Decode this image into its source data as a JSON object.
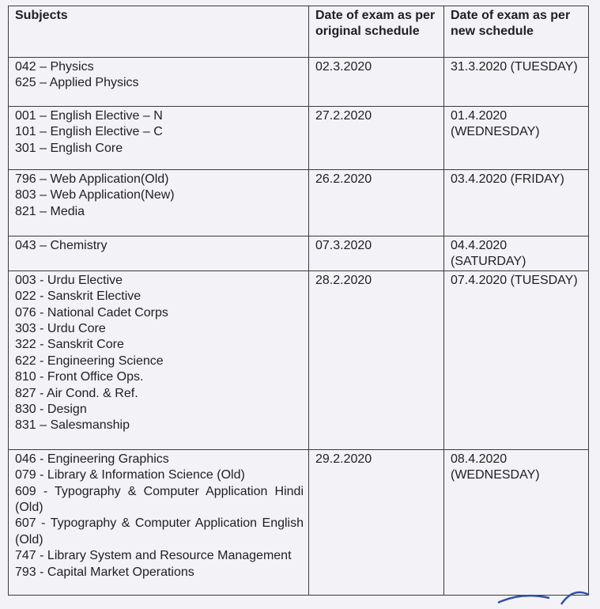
{
  "table": {
    "headers": [
      "Subjects",
      "Date of exam as per original schedule",
      "Date of exam as per new schedule"
    ],
    "rows": [
      {
        "subjects": [
          "042 – Physics",
          "625 – Applied Physics"
        ],
        "original": "02.3.2020",
        "new": "31.3.2020 (TUESDAY)"
      },
      {
        "subjects": [
          "001 – English Elective – N",
          "101 – English Elective – C",
          "301 – English Core"
        ],
        "original": "27.2.2020",
        "new": "01.4.2020 (WEDNESDAY)"
      },
      {
        "subjects": [
          "796 – Web Application(Old)",
          "803 – Web Application(New)",
          "821 – Media"
        ],
        "original": "26.2.2020",
        "new": "03.4.2020 (FRIDAY)"
      },
      {
        "subjects": [
          "043 – Chemistry"
        ],
        "original": "07.3.2020",
        "new": "04.4.2020 (SATURDAY)"
      },
      {
        "subjects": [
          "003 - Urdu Elective",
          "022 - Sanskrit Elective",
          "076 - National Cadet Corps",
          "303 - Urdu Core",
          "322 - Sanskrit Core",
          "622 - Engineering Science",
          "810 - Front Office Ops.",
          "827 - Air Cond. & Ref.",
          "830 - Design",
          "831 – Salesmanship"
        ],
        "original": "28.2.2020",
        "new": "07.4.2020 (TUESDAY)"
      },
      {
        "subjects": [
          "046 - Engineering Graphics",
          "079 - Library & Information Science (Old)",
          "609 - Typography & Computer Application Hindi (Old)",
          "607 - Typography & Computer Application English (Old)",
          "747 - Library System and Resource Management",
          "793 - Capital Market Operations"
        ],
        "original": "29.2.2020",
        "new": "08.4.2020 (WEDNESDAY)"
      }
    ]
  },
  "colors": {
    "paper": "#f3f2f6",
    "ink": "#1e1e24",
    "signature": "#3050a8"
  }
}
